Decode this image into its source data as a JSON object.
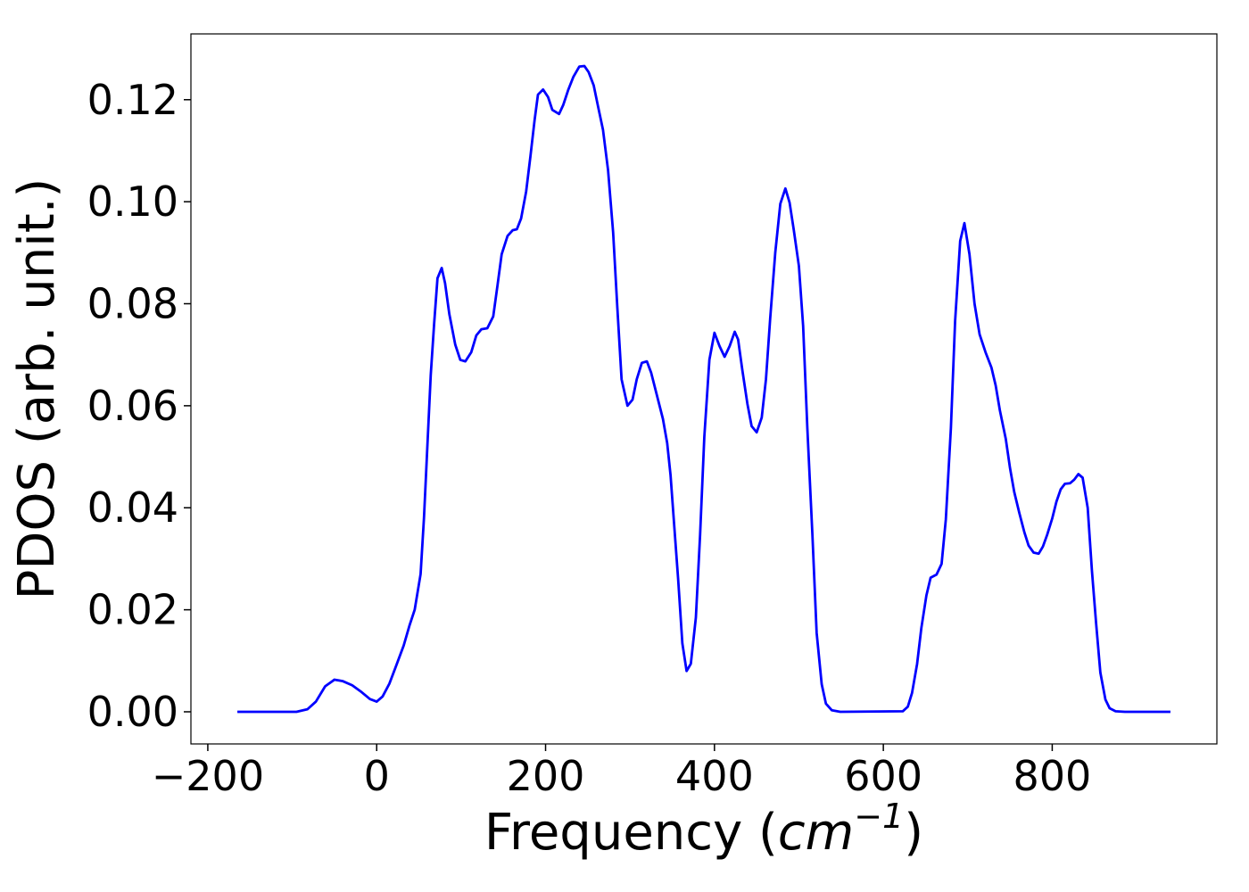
{
  "chart_data": {
    "type": "line",
    "xlabel_parts": [
      "Frequency (",
      "cm",
      "−1",
      ")"
    ],
    "ylabel": "PDOS (arb. unit.)",
    "x": [
      -165,
      -95,
      -82,
      -72,
      -61,
      -50,
      -40,
      -29,
      -19,
      -8,
      0,
      7,
      15,
      23,
      32,
      39,
      45,
      52,
      56,
      60,
      64,
      68,
      72,
      77,
      81,
      86,
      93,
      99,
      105,
      112,
      118,
      124,
      131,
      138,
      143,
      148,
      155,
      161,
      166,
      171,
      177,
      182,
      187,
      191,
      197,
      203,
      208,
      216,
      221,
      227,
      233,
      240,
      246,
      251,
      257,
      262,
      268,
      274,
      280,
      285,
      290,
      297,
      303,
      308,
      314,
      320,
      325,
      331,
      339,
      344,
      348,
      352,
      357,
      362,
      367,
      372,
      378,
      383,
      388,
      394,
      400,
      406,
      412,
      418,
      424,
      428,
      433,
      439,
      444,
      450,
      456,
      461,
      466,
      472,
      478,
      484,
      489,
      494,
      500,
      505,
      510,
      516,
      521,
      527,
      532,
      539,
      549,
      623,
      629,
      634,
      640,
      645,
      651,
      656,
      663,
      669,
      674,
      680,
      685,
      691,
      696,
      702,
      708,
      714,
      721,
      728,
      733,
      738,
      745,
      750,
      755,
      761,
      767,
      772,
      778,
      784,
      789,
      794,
      800,
      805,
      810,
      815,
      821,
      826,
      831,
      836,
      842,
      847,
      852,
      857,
      863,
      868,
      875,
      886,
      940
    ],
    "series": [
      {
        "name": "PDOS",
        "color": "#0000ff",
        "values": [
          0,
          0,
          0.0005,
          0.002,
          0.005,
          0.0063,
          0.006,
          0.0052,
          0.004,
          0.0025,
          0.002,
          0.003,
          0.0055,
          0.009,
          0.013,
          0.017,
          0.02,
          0.027,
          0.038,
          0.052,
          0.066,
          0.076,
          0.085,
          0.087,
          0.084,
          0.078,
          0.072,
          0.069,
          0.0687,
          0.0705,
          0.0738,
          0.075,
          0.0752,
          0.0775,
          0.0835,
          0.0897,
          0.0933,
          0.0944,
          0.0946,
          0.0967,
          0.102,
          0.1088,
          0.116,
          0.121,
          0.122,
          0.1205,
          0.118,
          0.1172,
          0.119,
          0.122,
          0.1245,
          0.1265,
          0.1266,
          0.1254,
          0.1228,
          0.1188,
          0.1141,
          0.1062,
          0.094,
          0.0792,
          0.0652,
          0.06,
          0.0612,
          0.0652,
          0.0684,
          0.0687,
          0.0665,
          0.0626,
          0.0574,
          0.0527,
          0.0464,
          0.0373,
          0.026,
          0.0134,
          0.008,
          0.0094,
          0.0185,
          0.0347,
          0.0539,
          0.069,
          0.0743,
          0.0717,
          0.0696,
          0.0717,
          0.0745,
          0.073,
          0.067,
          0.0604,
          0.056,
          0.0548,
          0.0577,
          0.0652,
          0.0771,
          0.09,
          0.0996,
          0.1026,
          0.0998,
          0.0944,
          0.0874,
          0.0757,
          0.0556,
          0.0347,
          0.0155,
          0.0054,
          0.0016,
          0.0003,
          0,
          0.0001,
          0.001,
          0.0037,
          0.0094,
          0.0164,
          0.0228,
          0.0263,
          0.0269,
          0.029,
          0.0377,
          0.0556,
          0.0766,
          0.0923,
          0.0958,
          0.0897,
          0.08,
          0.074,
          0.0705,
          0.0675,
          0.064,
          0.0591,
          0.0535,
          0.0478,
          0.0431,
          0.039,
          0.0352,
          0.0326,
          0.0312,
          0.031,
          0.0324,
          0.0347,
          0.0379,
          0.0412,
          0.0436,
          0.0447,
          0.0448,
          0.0455,
          0.0466,
          0.0459,
          0.04,
          0.0277,
          0.0173,
          0.0077,
          0.0024,
          0.0007,
          0.0001,
          0,
          0
        ]
      }
    ],
    "xlim": [
      -220,
      995
    ],
    "ylim": [
      -0.0063,
      0.1329
    ],
    "xticks": [
      {
        "value": -200,
        "label": "−200"
      },
      0,
      200,
      400,
      600,
      800
    ],
    "yticks": [
      {
        "value": 0,
        "label": "0.00"
      },
      {
        "value": 0.02,
        "label": "0.02"
      },
      {
        "value": 0.04,
        "label": "0.04"
      },
      {
        "value": 0.06,
        "label": "0.06"
      },
      {
        "value": 0.08,
        "label": "0.08"
      },
      {
        "value": 0.1,
        "label": "0.10"
      },
      {
        "value": 0.12,
        "label": "0.12"
      }
    ],
    "grid": false
  }
}
